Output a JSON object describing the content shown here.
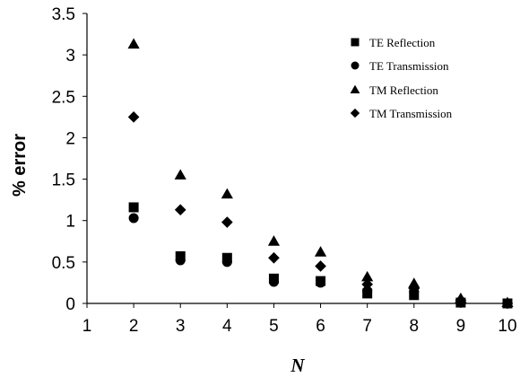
{
  "chart_data": {
    "type": "scatter",
    "title": "",
    "xlabel": "N",
    "ylabel": "% error",
    "xlim": [
      1,
      10
    ],
    "ylim": [
      0,
      3.5
    ],
    "xticks": [
      1,
      2,
      3,
      4,
      5,
      6,
      7,
      8,
      9,
      10
    ],
    "yticks": [
      0,
      0.5,
      1,
      1.5,
      2,
      2.5,
      3,
      3.5
    ],
    "ytick_labels": [
      "0",
      "0.5",
      "1",
      "1.5",
      "2",
      "2.5",
      "3",
      "3.5"
    ],
    "grid": false,
    "legend_position": "top-right",
    "series": [
      {
        "name": "TE Reflection",
        "marker": "square",
        "color": "#000000",
        "points": [
          [
            2,
            1.16
          ],
          [
            3,
            0.57
          ],
          [
            4,
            0.55
          ],
          [
            5,
            0.3
          ],
          [
            6,
            0.27
          ],
          [
            7,
            0.12
          ],
          [
            8,
            0.1
          ],
          [
            9,
            0.01
          ],
          [
            10,
            0.0
          ]
        ]
      },
      {
        "name": "TE Transmission",
        "marker": "circle",
        "color": "#000000",
        "points": [
          [
            2,
            1.03
          ],
          [
            3,
            0.52
          ],
          [
            4,
            0.5
          ],
          [
            5,
            0.26
          ],
          [
            6,
            0.25
          ],
          [
            7,
            0.15
          ],
          [
            8,
            0.14
          ],
          [
            9,
            0.02
          ],
          [
            10,
            0.0
          ]
        ]
      },
      {
        "name": "TM Reflection",
        "marker": "triangle",
        "color": "#000000",
        "points": [
          [
            2,
            3.13
          ],
          [
            3,
            1.55
          ],
          [
            4,
            1.32
          ],
          [
            5,
            0.75
          ],
          [
            6,
            0.62
          ],
          [
            7,
            0.32
          ],
          [
            8,
            0.24
          ],
          [
            9,
            0.06
          ],
          [
            10,
            0.01
          ]
        ]
      },
      {
        "name": "TM Transmission",
        "marker": "diamond",
        "color": "#000000",
        "points": [
          [
            2,
            2.25
          ],
          [
            3,
            1.13
          ],
          [
            4,
            0.98
          ],
          [
            5,
            0.55
          ],
          [
            6,
            0.45
          ],
          [
            7,
            0.23
          ],
          [
            8,
            0.18
          ],
          [
            9,
            0.04
          ],
          [
            10,
            0.0
          ]
        ]
      }
    ]
  }
}
